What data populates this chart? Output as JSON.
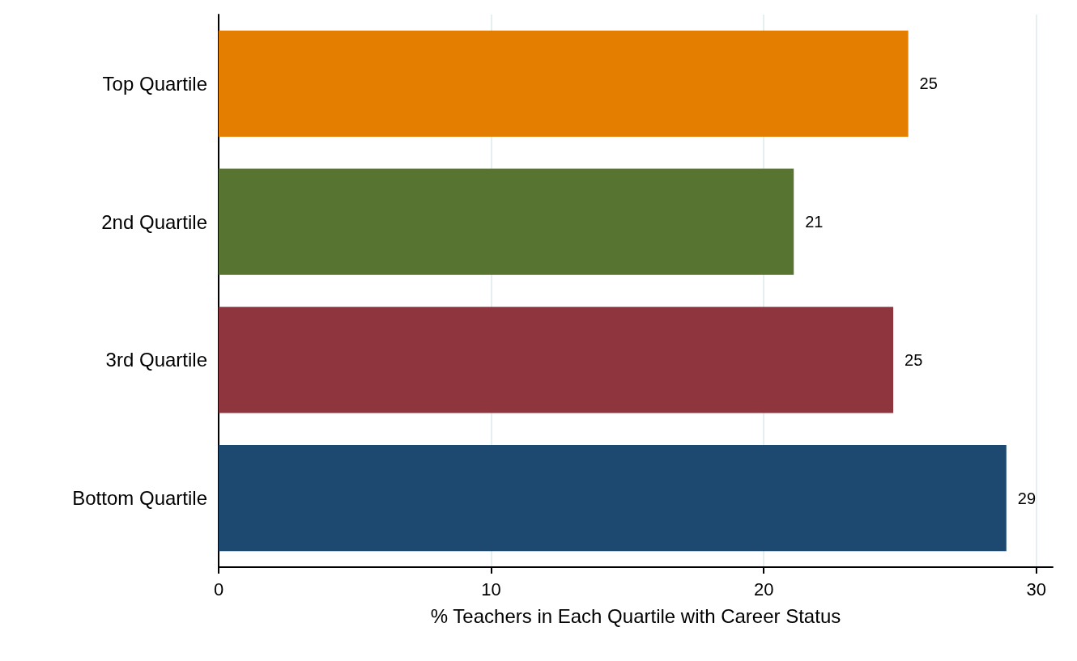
{
  "chart_data": {
    "type": "bar",
    "orientation": "horizontal",
    "xlabel": "% Teachers in Each Quartile with Career Status",
    "categories": [
      "Top Quartile",
      "2nd Quartile",
      "3rd Quartile",
      "Bottom Quartile"
    ],
    "values": [
      25.3,
      21.1,
      24.75,
      28.9
    ],
    "colors": [
      "#e37e00",
      "#587431",
      "#8f353d",
      "#1d4970"
    ],
    "value_labels": [
      "25",
      "21",
      "25",
      "29"
    ],
    "xlim": [
      0,
      30.6
    ],
    "xticks": [
      0,
      10,
      20,
      30
    ],
    "grid": "x"
  }
}
